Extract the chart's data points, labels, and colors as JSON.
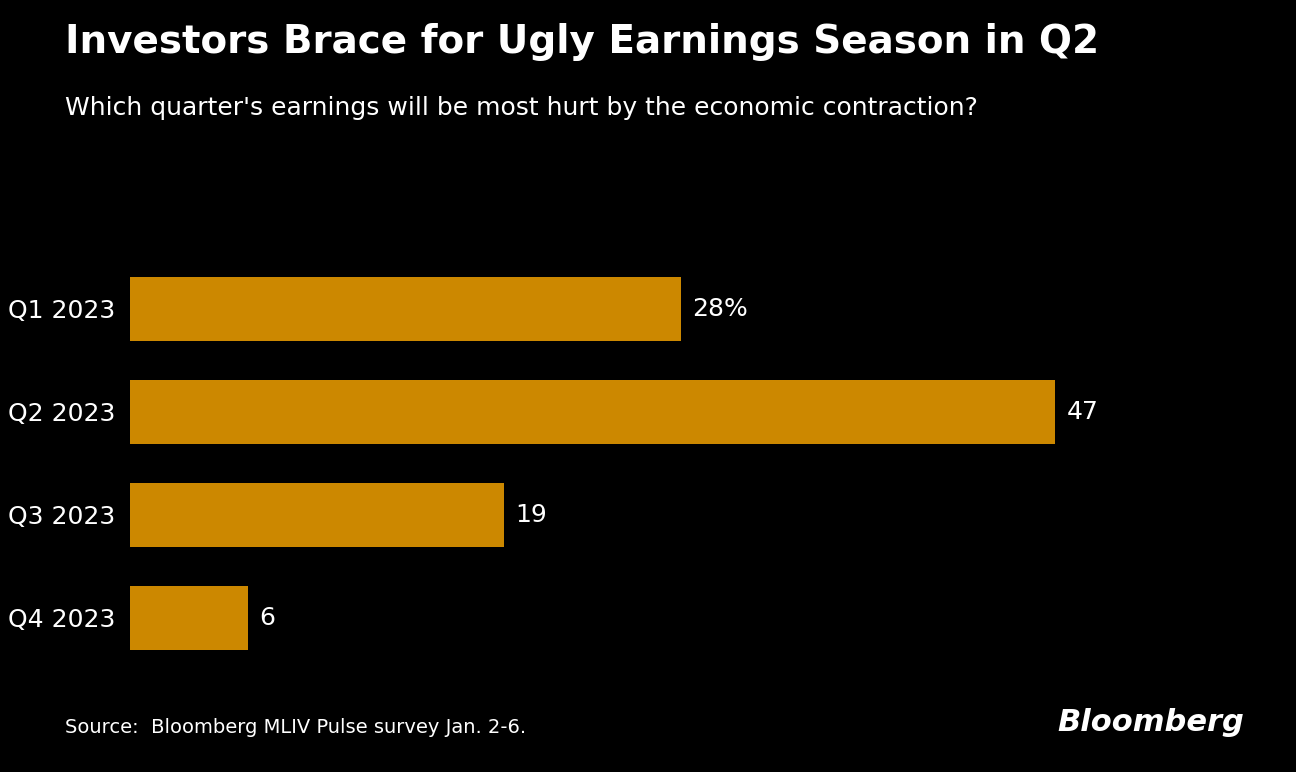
{
  "title": "Investors Brace for Ugly Earnings Season in Q2",
  "subtitle": "Which quarter's earnings will be most hurt by the economic contraction?",
  "categories": [
    "Q1 2023",
    "Q2 2023",
    "Q3 2023",
    "Q4 2023"
  ],
  "values": [
    28,
    47,
    19,
    6
  ],
  "labels": [
    "28%",
    "47",
    "19",
    "6"
  ],
  "bar_color": "#CC8800",
  "background_color": "#000000",
  "text_color": "#FFFFFF",
  "source_text": "Source:  Bloomberg MLIV Pulse survey Jan. 2-6.",
  "bloomberg_text": "Bloomberg",
  "title_fontsize": 28,
  "subtitle_fontsize": 18,
  "label_fontsize": 18,
  "ytick_fontsize": 18,
  "source_fontsize": 14,
  "bloomberg_fontsize": 22,
  "xlim": [
    0,
    54
  ]
}
